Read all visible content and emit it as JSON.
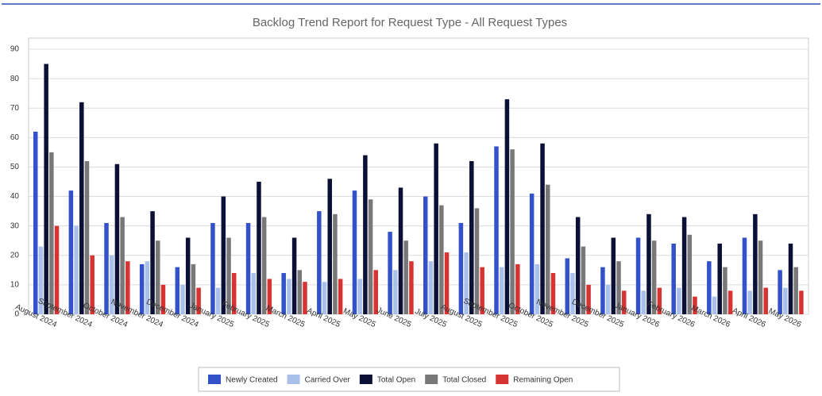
{
  "chart_data": {
    "type": "bar",
    "title": "Backlog Trend Report for Request Type - All Request Types",
    "categories": [
      "August 2024",
      "September 2024",
      "October 2024",
      "November 2024",
      "December 2024",
      "January 2025",
      "February 2025",
      "March 2025",
      "April 2025",
      "May 2025",
      "June 2025",
      "July 2025",
      "August 2025",
      "September 2025",
      "October 2025",
      "November 2025",
      "December 2025",
      "January 2026",
      "February 2026",
      "March 2026",
      "April 2026",
      "May 2026"
    ],
    "series": [
      {
        "name": "Newly Created",
        "color": "#3352c9",
        "values": [
          62,
          42,
          31,
          17,
          16,
          31,
          31,
          14,
          35,
          42,
          28,
          40,
          31,
          57,
          41,
          19,
          16,
          26,
          24,
          18,
          26,
          15
        ]
      },
      {
        "name": "Carried Over",
        "color": "#a9c0ea",
        "values": [
          23,
          30,
          20,
          18,
          10,
          9,
          14,
          12,
          11,
          12,
          15,
          18,
          21,
          16,
          17,
          14,
          10,
          8,
          9,
          6,
          8,
          9
        ]
      },
      {
        "name": "Total Open",
        "color": "#0b1036",
        "values": [
          85,
          72,
          51,
          35,
          26,
          40,
          45,
          26,
          46,
          54,
          43,
          58,
          52,
          73,
          58,
          33,
          26,
          34,
          33,
          24,
          34,
          24
        ]
      },
      {
        "name": "Total Closed",
        "color": "#787878",
        "values": [
          55,
          52,
          33,
          25,
          17,
          26,
          33,
          15,
          34,
          39,
          25,
          37,
          36,
          56,
          44,
          23,
          18,
          25,
          27,
          16,
          25,
          16
        ]
      },
      {
        "name": "Remaining Open",
        "color": "#d63333",
        "values": [
          30,
          20,
          18,
          10,
          9,
          14,
          12,
          11,
          12,
          15,
          18,
          21,
          16,
          17,
          14,
          10,
          8,
          9,
          6,
          8,
          9,
          8
        ]
      }
    ],
    "ylim": [
      0,
      90
    ],
    "yticks": [
      0,
      10,
      20,
      30,
      40,
      50,
      60,
      70,
      80,
      90
    ],
    "grid": true
  }
}
